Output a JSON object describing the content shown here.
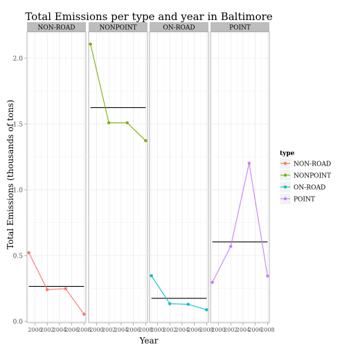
{
  "chart_data": {
    "type": "line",
    "title": "Total Emissions per type and year in Baltimore",
    "xlabel": "Year",
    "ylabel": "Total Emissions (thousands of tons)",
    "x_ticks": [
      2000,
      2002,
      2004,
      2006,
      2008
    ],
    "x_tick_labels": [
      "2000",
      "2002",
      "2004",
      "2006",
      "2008"
    ],
    "xlim": [
      1998.7,
      2008.3
    ],
    "y_ticks": [
      0.0,
      0.5,
      1.0,
      1.5,
      2.0
    ],
    "y_tick_labels": [
      "0.0",
      "0.5",
      "1.0",
      "1.5",
      "2.0"
    ],
    "ylim": [
      -0.01,
      2.2
    ],
    "grid": true,
    "legend_title": "type",
    "legend_position": "right",
    "panels": [
      {
        "name": "NON-ROAD",
        "color": "#F8766D",
        "x": [
          1999,
          2002,
          2005,
          2008
        ],
        "values": [
          0.522,
          0.241,
          0.248,
          0.055
        ],
        "mean": 0.266
      },
      {
        "name": "NONPOINT",
        "color": "#7CAE00",
        "x": [
          1999,
          2002,
          2005,
          2008
        ],
        "values": [
          2.107,
          1.509,
          1.509,
          1.373
        ],
        "mean": 1.624
      },
      {
        "name": "ON-ROAD",
        "color": "#00BFC4",
        "x": [
          1999,
          2002,
          2005,
          2008
        ],
        "values": [
          0.347,
          0.134,
          0.13,
          0.088
        ],
        "mean": 0.175
      },
      {
        "name": "POINT",
        "color": "#C77CFF",
        "x": [
          1999,
          2002,
          2005,
          2008
        ],
        "values": [
          0.297,
          0.57,
          1.202,
          0.345
        ],
        "mean": 0.604
      }
    ]
  }
}
